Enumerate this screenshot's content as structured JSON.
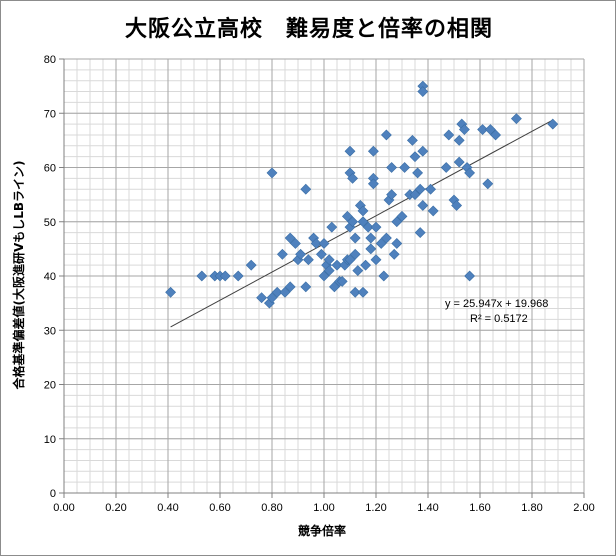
{
  "chart_data": {
    "type": "scatter",
    "title": "大阪公立高校　難易度と倍率の相関",
    "xlabel": "競争倍率",
    "ylabel": "合格基準偏差値(大阪進研VもしLBライン)",
    "xlim": [
      0,
      2
    ],
    "ylim": [
      0,
      80
    ],
    "xticks": [
      0,
      0.2,
      0.4,
      0.6,
      0.8,
      1.0,
      1.2,
      1.4,
      1.6,
      1.8,
      2.0
    ],
    "xtick_labels": [
      "0.00",
      "0.20",
      "0.40",
      "0.60",
      "0.80",
      "1.00",
      "1.20",
      "1.40",
      "1.60",
      "1.80",
      "2.00"
    ],
    "yticks": [
      0,
      10,
      20,
      30,
      40,
      50,
      60,
      70,
      80
    ],
    "ytick_labels": [
      "0",
      "10",
      "20",
      "30",
      "40",
      "50",
      "60",
      "70",
      "80"
    ],
    "grid": true,
    "marker_color": "#4f81bd",
    "trendline": {
      "slope": 25.947,
      "intercept": 19.968,
      "x_range": [
        0.41,
        1.88
      ],
      "equation_label": "y = 25.947x + 19.968",
      "r2_label": "R² = 0.5172"
    },
    "points": [
      [
        0.41,
        37
      ],
      [
        0.53,
        40
      ],
      [
        0.58,
        40
      ],
      [
        0.6,
        40
      ],
      [
        0.62,
        40
      ],
      [
        0.67,
        40
      ],
      [
        0.72,
        42
      ],
      [
        0.76,
        36
      ],
      [
        0.79,
        35
      ],
      [
        0.8,
        59
      ],
      [
        0.8,
        36
      ],
      [
        0.82,
        37
      ],
      [
        0.84,
        44
      ],
      [
        0.85,
        37
      ],
      [
        0.87,
        47
      ],
      [
        0.87,
        38
      ],
      [
        0.89,
        46
      ],
      [
        0.9,
        43
      ],
      [
        0.91,
        44
      ],
      [
        0.93,
        56
      ],
      [
        0.93,
        38
      ],
      [
        0.94,
        43
      ],
      [
        0.96,
        47
      ],
      [
        0.97,
        46
      ],
      [
        0.99,
        44
      ],
      [
        1.0,
        46
      ],
      [
        1.0,
        40
      ],
      [
        1.01,
        42
      ],
      [
        1.02,
        41
      ],
      [
        1.02,
        43
      ],
      [
        1.03,
        49
      ],
      [
        1.04,
        38
      ],
      [
        1.05,
        42
      ],
      [
        1.06,
        39
      ],
      [
        1.07,
        39
      ],
      [
        1.08,
        42
      ],
      [
        1.09,
        43
      ],
      [
        1.09,
        51
      ],
      [
        1.1,
        49
      ],
      [
        1.1,
        43
      ],
      [
        1.1,
        63
      ],
      [
        1.1,
        59
      ],
      [
        1.11,
        58
      ],
      [
        1.11,
        50
      ],
      [
        1.12,
        47
      ],
      [
        1.12,
        44
      ],
      [
        1.12,
        37
      ],
      [
        1.13,
        41
      ],
      [
        1.14,
        53
      ],
      [
        1.15,
        52
      ],
      [
        1.15,
        50
      ],
      [
        1.15,
        37
      ],
      [
        1.16,
        42
      ],
      [
        1.17,
        49
      ],
      [
        1.18,
        47
      ],
      [
        1.18,
        45
      ],
      [
        1.19,
        58
      ],
      [
        1.19,
        57
      ],
      [
        1.19,
        63
      ],
      [
        1.2,
        49
      ],
      [
        1.2,
        43
      ],
      [
        1.22,
        46
      ],
      [
        1.23,
        40
      ],
      [
        1.24,
        47
      ],
      [
        1.24,
        66
      ],
      [
        1.25,
        54
      ],
      [
        1.26,
        55
      ],
      [
        1.26,
        60
      ],
      [
        1.27,
        44
      ],
      [
        1.28,
        46
      ],
      [
        1.28,
        50
      ],
      [
        1.3,
        51
      ],
      [
        1.31,
        60
      ],
      [
        1.33,
        55
      ],
      [
        1.34,
        65
      ],
      [
        1.35,
        55
      ],
      [
        1.35,
        62
      ],
      [
        1.36,
        59
      ],
      [
        1.37,
        48
      ],
      [
        1.37,
        56
      ],
      [
        1.38,
        75
      ],
      [
        1.38,
        74
      ],
      [
        1.38,
        63
      ],
      [
        1.38,
        53
      ],
      [
        1.41,
        56
      ],
      [
        1.42,
        52
      ],
      [
        1.47,
        60
      ],
      [
        1.48,
        66
      ],
      [
        1.5,
        54
      ],
      [
        1.51,
        53
      ],
      [
        1.52,
        61
      ],
      [
        1.52,
        65
      ],
      [
        1.53,
        68
      ],
      [
        1.54,
        67
      ],
      [
        1.55,
        60
      ],
      [
        1.56,
        59
      ],
      [
        1.56,
        40
      ],
      [
        1.61,
        67
      ],
      [
        1.63,
        57
      ],
      [
        1.64,
        67
      ],
      [
        1.66,
        66
      ],
      [
        1.74,
        69
      ],
      [
        1.88,
        68
      ]
    ]
  }
}
